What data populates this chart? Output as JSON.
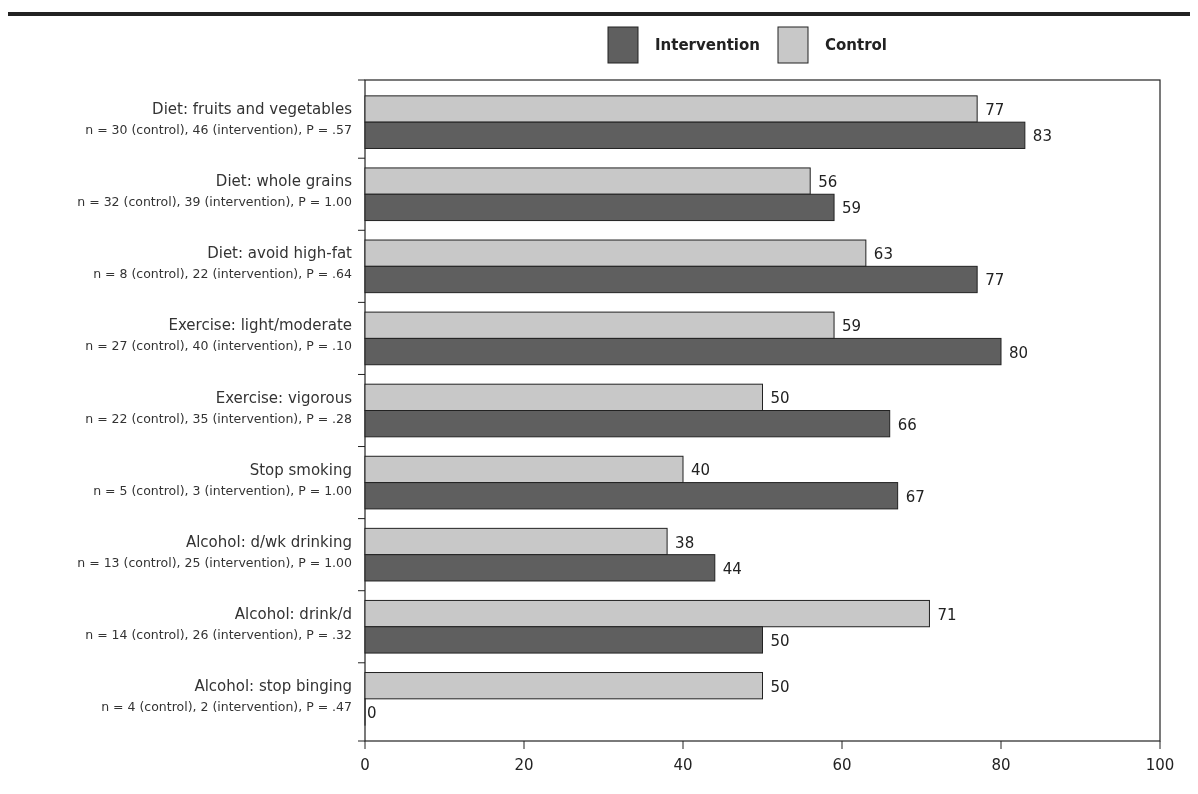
{
  "chart_data": {
    "type": "bar",
    "orientation": "horizontal",
    "categories": [
      "Diet: fruits and vegetables\nn = 30 (control), 46 (intervention), P = .57",
      "Diet: whole grains\nn = 32 (control), 39 (intervention), P = 1.00",
      "Diet: avoid high-fat\nn = 8 (control), 22 (intervention), P = .64",
      "Exercise: light/moderate\nn = 27 (control), 40 (intervention), P = .10",
      "Exercise: vigorous\nn = 22 (control), 35 (intervention), P = .28",
      "Stop smoking\nn = 5 (control), 3 (intervention), P = 1.00",
      "Alcohol: d/wk drinking\nn = 13 (control), 25 (intervention), P = 1.00",
      "Alcohol: drink/d\nn = 14 (control), 26 (intervention), P = .32",
      "Alcohol: stop binging\nn = 4 (control), 2 (intervention), P = .47"
    ],
    "series": [
      {
        "name": "Control",
        "color": "#c8c8c8",
        "values": [
          77,
          56,
          63,
          59,
          50,
          40,
          38,
          71,
          50
        ]
      },
      {
        "name": "Intervention",
        "color": "#5f5f5f",
        "values": [
          83,
          59,
          77,
          80,
          66,
          67,
          44,
          50,
          0
        ]
      }
    ],
    "xlim": [
      0,
      100
    ],
    "xticks": [
      0,
      20,
      40,
      60,
      80,
      100
    ],
    "data_labels": true,
    "legend": "top right",
    "grid": false
  }
}
